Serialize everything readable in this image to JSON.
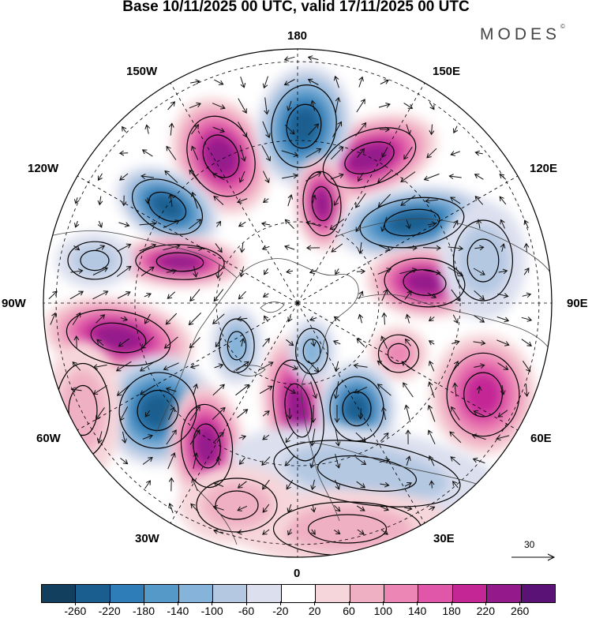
{
  "header": {
    "title": "Base 10/11/2025 00 UTC, valid 17/11/2025 00 UTC",
    "brand": "MODES",
    "brand_mark": "©"
  },
  "map": {
    "projection": "north polar stereographic",
    "longitude_labels": [
      "180",
      "150E",
      "120E",
      "90E",
      "60E",
      "30E",
      "0",
      "30W",
      "60W",
      "90W",
      "120W",
      "150W"
    ],
    "reference_vector": {
      "label": "30"
    },
    "colors": {
      "coast": "#444444",
      "grid": "#000000",
      "arrow": "#111111"
    }
  },
  "colorbar": {
    "colors": [
      "#123f5e",
      "#1a5e8f",
      "#2e7db8",
      "#5599c9",
      "#85b3d9",
      "#b4c8e2",
      "#dcdfee",
      "#ffffff",
      "#f6d6da",
      "#f0b0c4",
      "#ec86b5",
      "#e056a8",
      "#c42696",
      "#941a8c",
      "#5b1277"
    ],
    "labels": [
      "-260",
      "-220",
      "-180",
      "-140",
      "-100",
      "-60",
      "-20",
      "20",
      "60",
      "100",
      "140",
      "180",
      "220",
      "260"
    ]
  }
}
